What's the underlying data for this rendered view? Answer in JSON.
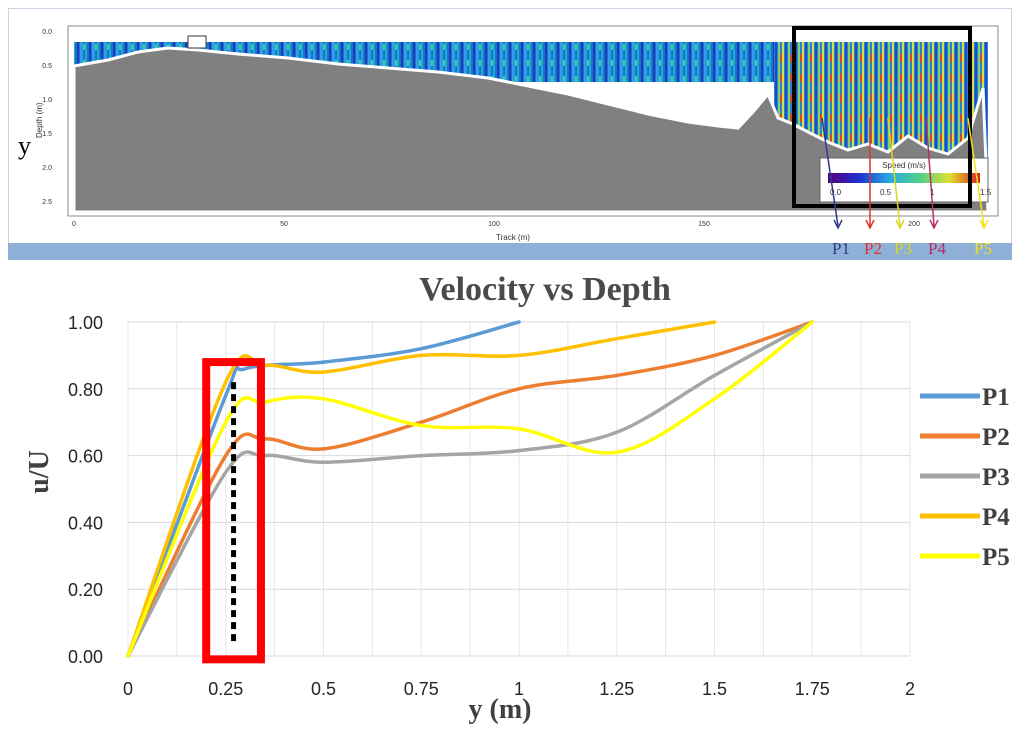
{
  "top_panel": {
    "ylabel": "y",
    "axis_title": "Depth (m)",
    "xlabel": "Track (m)",
    "y_ticks": [
      "0.0",
      "0.5",
      "1.0",
      "1.5",
      "2.0",
      "2.5"
    ],
    "x_ticks": [
      "0",
      "50",
      "100",
      "150",
      "200"
    ],
    "colorbar_title": "Speed (m/s)",
    "colorbar_ticks": [
      "0.0",
      "0.5",
      "1",
      "1.5"
    ],
    "profile_labels": [
      {
        "name": "P1",
        "color": "#2e3a8c"
      },
      {
        "name": "P2",
        "color": "#e0322b"
      },
      {
        "name": "P3",
        "color": "#d8d820"
      },
      {
        "name": "P4",
        "color": "#b0306a"
      },
      {
        "name": "P5",
        "color": "#f2e218"
      }
    ]
  },
  "chart_data": {
    "type": "line",
    "title": "Velocity vs Depth",
    "xlabel": "y (m)",
    "ylabel": "u/U",
    "xlim": [
      0,
      2
    ],
    "ylim": [
      0,
      1
    ],
    "x_ticks": [
      "0",
      "0.25",
      "0.5",
      "0.75",
      "1",
      "1.25",
      "1.5",
      "1.75",
      "2"
    ],
    "y_ticks": [
      "0.00",
      "0.20",
      "0.40",
      "0.60",
      "0.80",
      "1.00"
    ],
    "grid": true,
    "legend_position": "right",
    "series": [
      {
        "name": "P1",
        "color": "#5b9bd5",
        "points": [
          [
            0,
            0
          ],
          [
            0.25,
            0.78
          ],
          [
            0.3,
            0.86
          ],
          [
            0.5,
            0.88
          ],
          [
            0.75,
            0.92
          ],
          [
            1.0,
            1.0
          ]
        ]
      },
      {
        "name": "P2",
        "color": "#ed7d31",
        "points": [
          [
            0,
            0
          ],
          [
            0.25,
            0.6
          ],
          [
            0.35,
            0.65
          ],
          [
            0.5,
            0.62
          ],
          [
            0.75,
            0.7
          ],
          [
            1.0,
            0.8
          ],
          [
            1.25,
            0.84
          ],
          [
            1.5,
            0.9
          ],
          [
            1.75,
            1.0
          ]
        ]
      },
      {
        "name": "P3",
        "color": "#a5a5a5",
        "points": [
          [
            0,
            0
          ],
          [
            0.25,
            0.55
          ],
          [
            0.35,
            0.6
          ],
          [
            0.5,
            0.58
          ],
          [
            0.75,
            0.6
          ],
          [
            1.0,
            0.615
          ],
          [
            1.25,
            0.67
          ],
          [
            1.5,
            0.84
          ],
          [
            1.75,
            1.0
          ]
        ]
      },
      {
        "name": "P4",
        "color": "#ffc000",
        "points": [
          [
            0,
            0
          ],
          [
            0.25,
            0.82
          ],
          [
            0.35,
            0.87
          ],
          [
            0.5,
            0.85
          ],
          [
            0.75,
            0.9
          ],
          [
            1.0,
            0.9
          ],
          [
            1.25,
            0.95
          ],
          [
            1.5,
            1.0
          ]
        ]
      },
      {
        "name": "P5",
        "color": "#ffff00",
        "points": [
          [
            0,
            0
          ],
          [
            0.25,
            0.7
          ],
          [
            0.35,
            0.76
          ],
          [
            0.5,
            0.77
          ],
          [
            0.75,
            0.69
          ],
          [
            1.0,
            0.68
          ],
          [
            1.25,
            0.61
          ],
          [
            1.5,
            0.77
          ],
          [
            1.75,
            1.0
          ]
        ]
      }
    ],
    "annotations": [
      {
        "type": "highlight-box",
        "color": "#ff0000",
        "x_range": [
          0.2,
          0.34
        ],
        "y_range": [
          -0.01,
          0.88
        ]
      },
      {
        "type": "dashed-line",
        "color": "#000000",
        "x": 0.27,
        "y_range": [
          0.03,
          0.82
        ]
      }
    ]
  }
}
